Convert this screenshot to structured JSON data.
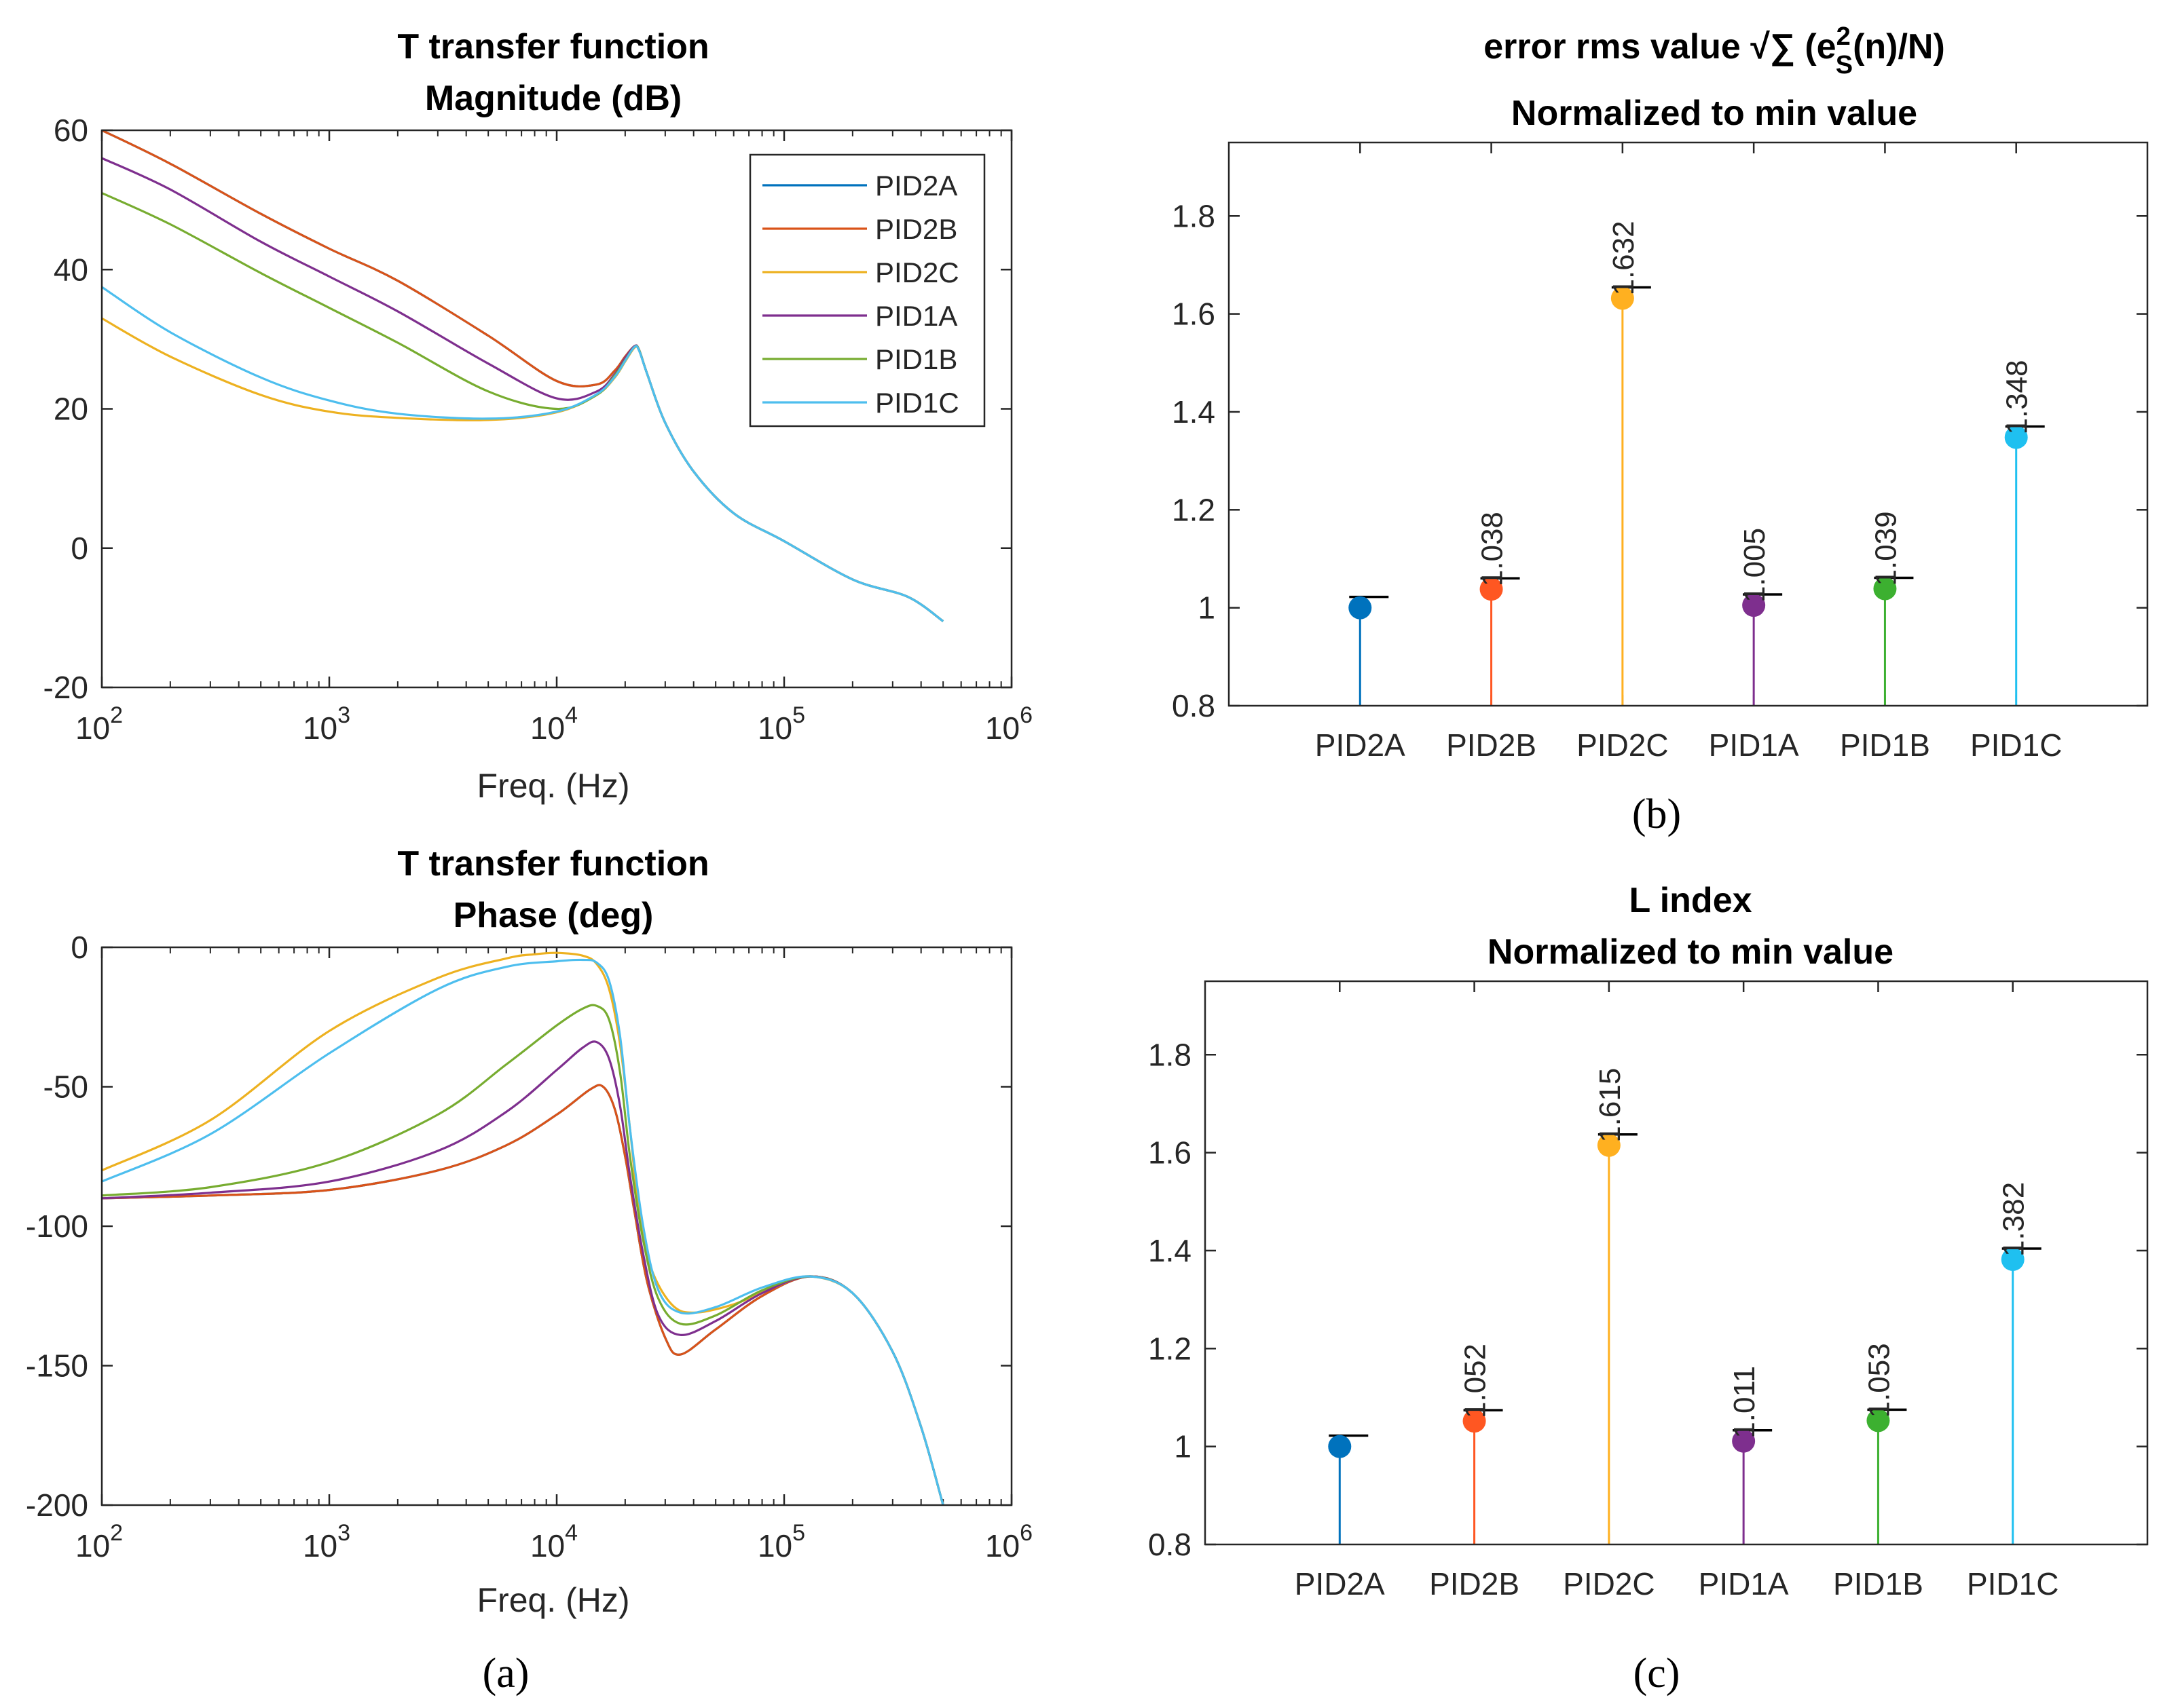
{
  "panel_labels": {
    "a": "(a)",
    "b": "(b)",
    "c": "(c)"
  },
  "series_colors": {
    "PID2A": "#0072BD",
    "PID2B": "#D95319",
    "PID2C": "#EDB120",
    "PID1A": "#7E2F8E",
    "PID1B": "#77AC30",
    "PID1C": "#4DBEEE"
  },
  "stem_colors": {
    "PID2A": "#0072BD",
    "PID2B": "#FF5722",
    "PID2C": "#FFB020",
    "PID1A": "#7E2F8E",
    "PID1B": "#3CB030",
    "PID1C": "#1FC0F0"
  },
  "chart_data": [
    {
      "id": "magnitude",
      "type": "line",
      "title": [
        "T transfer function",
        "Magnitude (dB)"
      ],
      "xlabel": "Freq. (Hz)",
      "xscale": "log",
      "xlim": [
        100,
        1000000
      ],
      "ylim": [
        -20,
        60
      ],
      "yticks": [
        -20,
        0,
        20,
        40,
        60
      ],
      "xtick_exponents": [
        "2",
        "3",
        "4",
        "5",
        "6"
      ],
      "xtick_base": "10",
      "legend_position": "top-right",
      "series": [
        {
          "name": "PID2A",
          "x": [
            100,
            200,
            500,
            1000,
            2000,
            5000,
            10000,
            15000,
            18000,
            20000,
            22000,
            23000,
            25000,
            30000,
            40000,
            60000,
            100000,
            200000,
            350000,
            500000
          ],
          "y": [
            60,
            55.2,
            48,
            43,
            38.4,
            30.5,
            24,
            23.5,
            25.5,
            27.5,
            29,
            28.5,
            25,
            18,
            11,
            5,
            1,
            -4.5,
            -7,
            -10.5
          ]
        },
        {
          "name": "PID2B",
          "x": [
            100,
            200,
            500,
            1000,
            2000,
            5000,
            10000,
            15000,
            18000,
            20000,
            22000,
            23000,
            25000,
            30000,
            40000,
            60000,
            100000,
            200000,
            350000,
            500000
          ],
          "y": [
            60,
            55.2,
            48,
            43,
            38.4,
            30.5,
            24,
            23.5,
            25.5,
            27.5,
            29,
            28.5,
            25,
            18,
            11,
            5,
            1,
            -4.5,
            -7,
            -10.5
          ]
        },
        {
          "name": "PID2C",
          "x": [
            100,
            200,
            500,
            1000,
            2000,
            5000,
            10000,
            15000,
            18000,
            20000,
            22000,
            23000,
            25000,
            30000,
            40000,
            60000,
            100000,
            200000,
            350000,
            500000
          ],
          "y": [
            33,
            27.5,
            22,
            19.6,
            18.7,
            18.4,
            19.5,
            22,
            24.5,
            26.8,
            28.8,
            28.4,
            25,
            18,
            11,
            5,
            1,
            -4.5,
            -7,
            -10.5
          ]
        },
        {
          "name": "PID1A",
          "x": [
            100,
            200,
            500,
            1000,
            2000,
            5000,
            10000,
            15000,
            18000,
            20000,
            22000,
            23000,
            25000,
            30000,
            40000,
            60000,
            100000,
            200000,
            350000,
            500000
          ],
          "y": [
            56,
            51.5,
            44,
            39,
            34,
            26.5,
            21.5,
            22.5,
            25,
            27.3,
            29,
            28.5,
            25,
            18,
            11,
            5,
            1,
            -4.5,
            -7,
            -10.5
          ]
        },
        {
          "name": "PID1B",
          "x": [
            100,
            200,
            500,
            1000,
            2000,
            5000,
            10000,
            15000,
            18000,
            20000,
            22000,
            23000,
            25000,
            30000,
            40000,
            60000,
            100000,
            200000,
            350000,
            500000
          ],
          "y": [
            51,
            46.5,
            39.5,
            34.5,
            29.5,
            22.5,
            20,
            22,
            24.8,
            27,
            28.9,
            28.5,
            25,
            18,
            11,
            5,
            1,
            -4.5,
            -7,
            -10.5
          ]
        },
        {
          "name": "PID1C",
          "x": [
            100,
            200,
            500,
            1000,
            2000,
            5000,
            10000,
            15000,
            18000,
            20000,
            22000,
            23000,
            25000,
            30000,
            40000,
            60000,
            100000,
            200000,
            350000,
            500000
          ],
          "y": [
            37.5,
            31,
            24.5,
            21.2,
            19.3,
            18.6,
            19.6,
            22.1,
            24.6,
            26.9,
            28.9,
            28.4,
            25,
            18,
            11,
            5,
            1,
            -4.5,
            -7,
            -10.5
          ]
        }
      ]
    },
    {
      "id": "phase",
      "type": "line",
      "title": [
        "T transfer function",
        "Phase (deg)"
      ],
      "xlabel": "Freq. (Hz)",
      "xscale": "log",
      "xlim": [
        100,
        1000000
      ],
      "ylim": [
        -200,
        0
      ],
      "yticks": [
        -200,
        -150,
        -100,
        -50,
        0
      ],
      "xtick_exponents": [
        "2",
        "3",
        "4",
        "5",
        "6"
      ],
      "xtick_base": "10",
      "series": [
        {
          "name": "PID2A",
          "x": [
            100,
            300,
            1000,
            3000,
            6000,
            10000,
            14000,
            16000,
            18000,
            20000,
            22000,
            25000,
            30000,
            35000,
            50000,
            80000,
            130000,
            200000,
            300000,
            400000,
            500000
          ],
          "y": [
            -90,
            -89,
            -87,
            -80,
            -71,
            -60,
            -51,
            -50,
            -58,
            -75,
            -95,
            -120,
            -140,
            -146,
            -137,
            -125,
            -118,
            -124,
            -145,
            -172,
            -200
          ]
        },
        {
          "name": "PID2B",
          "x": [
            100,
            300,
            1000,
            3000,
            6000,
            10000,
            14000,
            16000,
            18000,
            20000,
            22000,
            25000,
            30000,
            35000,
            50000,
            80000,
            130000,
            200000,
            300000,
            400000,
            500000
          ],
          "y": [
            -90,
            -89,
            -87,
            -80,
            -71,
            -60,
            -51,
            -50,
            -58,
            -75,
            -95,
            -120,
            -140,
            -146,
            -137,
            -125,
            -118,
            -124,
            -145,
            -172,
            -200
          ]
        },
        {
          "name": "PID2C",
          "x": [
            100,
            300,
            1000,
            3000,
            6000,
            8000,
            10000,
            13000,
            15000,
            17000,
            19000,
            21000,
            23000,
            26000,
            32000,
            40000,
            60000,
            90000,
            130000,
            200000,
            300000,
            400000,
            500000
          ],
          "y": [
            -80,
            -62,
            -30,
            -11,
            -4,
            -2.5,
            -2,
            -3,
            -6,
            -15,
            -35,
            -65,
            -95,
            -115,
            -128,
            -131,
            -128,
            -122,
            -118,
            -124,
            -145,
            -172,
            -200
          ]
        },
        {
          "name": "PID1A",
          "x": [
            100,
            300,
            1000,
            3000,
            6000,
            10000,
            13000,
            15000,
            17000,
            19000,
            21000,
            24000,
            28000,
            35000,
            50000,
            80000,
            130000,
            200000,
            300000,
            400000,
            500000
          ],
          "y": [
            -90,
            -88,
            -84,
            -73,
            -59,
            -44,
            -36,
            -34,
            -40,
            -57,
            -82,
            -110,
            -132,
            -139,
            -134,
            -124,
            -118,
            -124,
            -145,
            -172,
            -200
          ]
        },
        {
          "name": "PID1B",
          "x": [
            100,
            300,
            1000,
            3000,
            6000,
            10000,
            13000,
            15000,
            17000,
            19000,
            21000,
            24000,
            28000,
            35000,
            50000,
            80000,
            130000,
            200000,
            300000,
            400000,
            500000
          ],
          "y": [
            -89,
            -86,
            -77,
            -60,
            -42,
            -28,
            -22,
            -21,
            -26,
            -45,
            -75,
            -105,
            -126,
            -135,
            -132,
            -123,
            -118,
            -124,
            -145,
            -172,
            -200
          ]
        },
        {
          "name": "PID1C",
          "x": [
            100,
            300,
            1000,
            3000,
            6000,
            10000,
            13000,
            15000,
            17000,
            19000,
            21000,
            24000,
            28000,
            35000,
            50000,
            80000,
            130000,
            200000,
            300000,
            400000,
            500000
          ],
          "y": [
            -84,
            -67,
            -38,
            -15,
            -7,
            -5,
            -4.5,
            -5.5,
            -12,
            -32,
            -65,
            -100,
            -123,
            -131,
            -129,
            -122,
            -118,
            -124,
            -145,
            -172,
            -200
          ]
        }
      ]
    },
    {
      "id": "error_rms",
      "type": "stem",
      "title": [
        "error rms value √∑  (e",
        "Normalized to min value"
      ],
      "title_sup": "2",
      "title_sub": "S",
      "title_tail": "(n)/N)",
      "categories": [
        "PID2A",
        "PID2B",
        "PID2C",
        "PID1A",
        "PID1B",
        "PID1C"
      ],
      "values": [
        1.0,
        1.038,
        1.632,
        1.005,
        1.039,
        1.348
      ],
      "labels": [
        "",
        "1.038",
        "1.632",
        "1.005",
        "1.039",
        "1.348"
      ],
      "ylim": [
        0.8,
        1.95
      ],
      "yticks": [
        0.8,
        1,
        1.2,
        1.4,
        1.6,
        1.8
      ],
      "ytick_labels": [
        "0.8",
        "1",
        "1.2",
        "1.4",
        "1.6",
        "1.8"
      ]
    },
    {
      "id": "l_index",
      "type": "stem",
      "title": [
        "L index",
        "Normalized to min value"
      ],
      "categories": [
        "PID2A",
        "PID2B",
        "PID2C",
        "PID1A",
        "PID1B",
        "PID1C"
      ],
      "values": [
        1.0,
        1.052,
        1.615,
        1.011,
        1.053,
        1.382
      ],
      "labels": [
        "",
        "1.052",
        "1.615",
        "1.011",
        "1.053",
        "1.382"
      ],
      "ylim": [
        0.8,
        1.95
      ],
      "yticks": [
        0.8,
        1,
        1.2,
        1.4,
        1.6,
        1.8
      ],
      "ytick_labels": [
        "0.8",
        "1",
        "1.2",
        "1.4",
        "1.6",
        "1.8"
      ]
    }
  ]
}
